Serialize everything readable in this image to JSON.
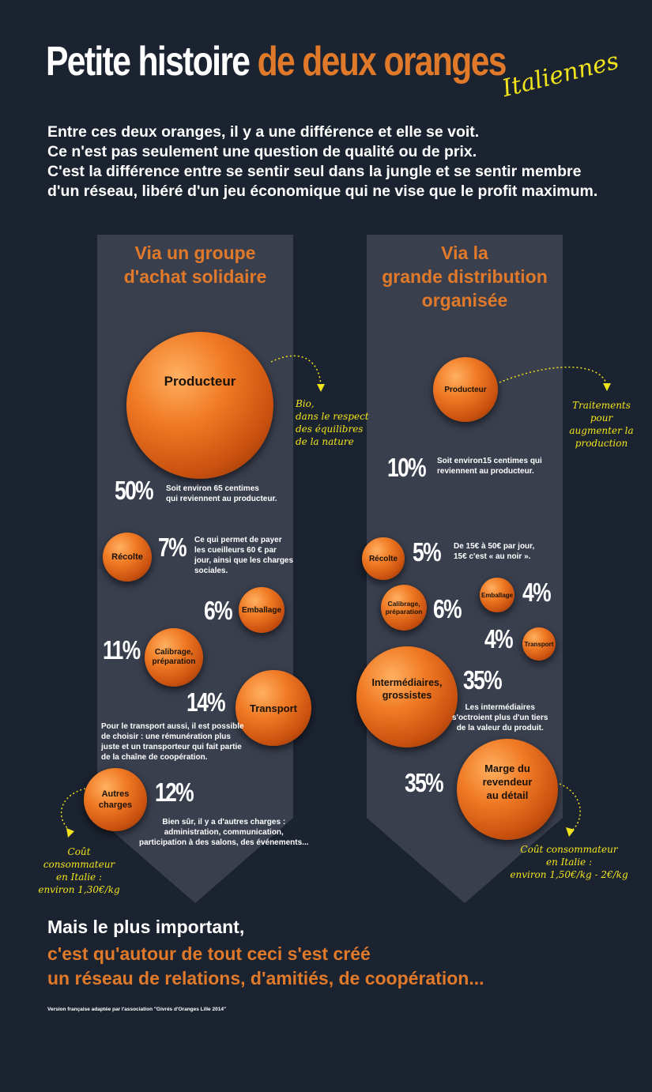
{
  "title": {
    "white": "Petite histoire",
    "orange": "de deux oranges",
    "script": "Italiennes"
  },
  "intro": [
    "Entre ces deux oranges, il y a une différence et elle se voit.",
    "Ce n'est pas seulement une question de qualité ou de prix.",
    "C'est la différence entre se sentir seul dans la jungle et se sentir membre",
    "d'un réseau, libéré d'un jeu économique qui ne vise que le profit maximum."
  ],
  "left": {
    "heading": [
      "Via un groupe",
      "d'achat solidaire"
    ],
    "producteur": "Producteur",
    "bio_note": [
      "Bio,",
      "dans le respect",
      "des équilibres",
      "de la nature"
    ],
    "pct_prod": "50%",
    "note_prod": [
      "Soit environ 65 centimes",
      "qui reviennent au producteur."
    ],
    "recolte": "Récolte",
    "pct_recolte": "7%",
    "note_recolte": [
      "Ce qui permet de payer",
      "les cueilleurs 60 € par",
      "jour, ainsi que les charges",
      "sociales."
    ],
    "pct_emballage": "6%",
    "emballage": "Emballage",
    "pct_calibrage": "11%",
    "calibrage": [
      "Calibrage,",
      "préparation"
    ],
    "pct_transport": "14%",
    "transport": "Transport",
    "note_transport": [
      "Pour le transport aussi, il est possible",
      "de choisir : une rémunération plus",
      "juste et un transporteur qui fait partie",
      "de la chaîne de coopération."
    ],
    "autres": [
      "Autres",
      "charges"
    ],
    "pct_autres": "12%",
    "note_autres": [
      "Bien sûr, il y a d'autres charges :",
      "administration, communication,",
      "participation à des salons, des événements..."
    ],
    "cout": [
      "Coût consommateur",
      "en Italie :",
      "environ 1,30€/kg"
    ]
  },
  "right": {
    "heading": [
      "Via la",
      "grande distribution",
      "organisée"
    ],
    "producteur": "Producteur",
    "traitements_note": [
      "Traitements",
      "pour",
      "augmenter la",
      "production"
    ],
    "pct_prod": "10%",
    "note_prod": [
      "Soit environ15 centimes qui",
      "reviennent au producteur."
    ],
    "recolte": "Récolte",
    "pct_recolte": "5%",
    "note_recolte": [
      "De 15€ à 50€ par jour,",
      "15€ c'est « au noir »."
    ],
    "emballage": "Emballage",
    "pct_emballage": "4%",
    "calibrage": [
      "Calibrage,",
      "préparation"
    ],
    "pct_calibrage": "6%",
    "pct_transport": "4%",
    "transport": "Transport",
    "intermediaires": [
      "Intermédiaires,",
      "grossistes"
    ],
    "pct_inter": "35%",
    "note_inter": [
      "Les intermédiaires",
      "s'octroient plus d'un tiers",
      "de la valeur du produit."
    ],
    "pct_marge": "35%",
    "marge": [
      "Marge du",
      "revendeur",
      "au détail"
    ],
    "cout": [
      "Coût consommateur",
      "en Italie :",
      "environ 1,50€/kg - 2€/kg"
    ]
  },
  "bottom": {
    "line1": "Mais le plus important,",
    "line2": "c'est qu'autour de tout ceci s'est créé",
    "line3": "un réseau de relations, d'amitiés, de coopération...",
    "credit": "Version française adaptée par l'association \"Givrés d'Oranges Lille 2014\""
  },
  "colors": {
    "background": "#1b2330",
    "panel": "#3a3f4e",
    "orange_text": "#e07a2a",
    "yellow_text": "#f2e41c"
  }
}
